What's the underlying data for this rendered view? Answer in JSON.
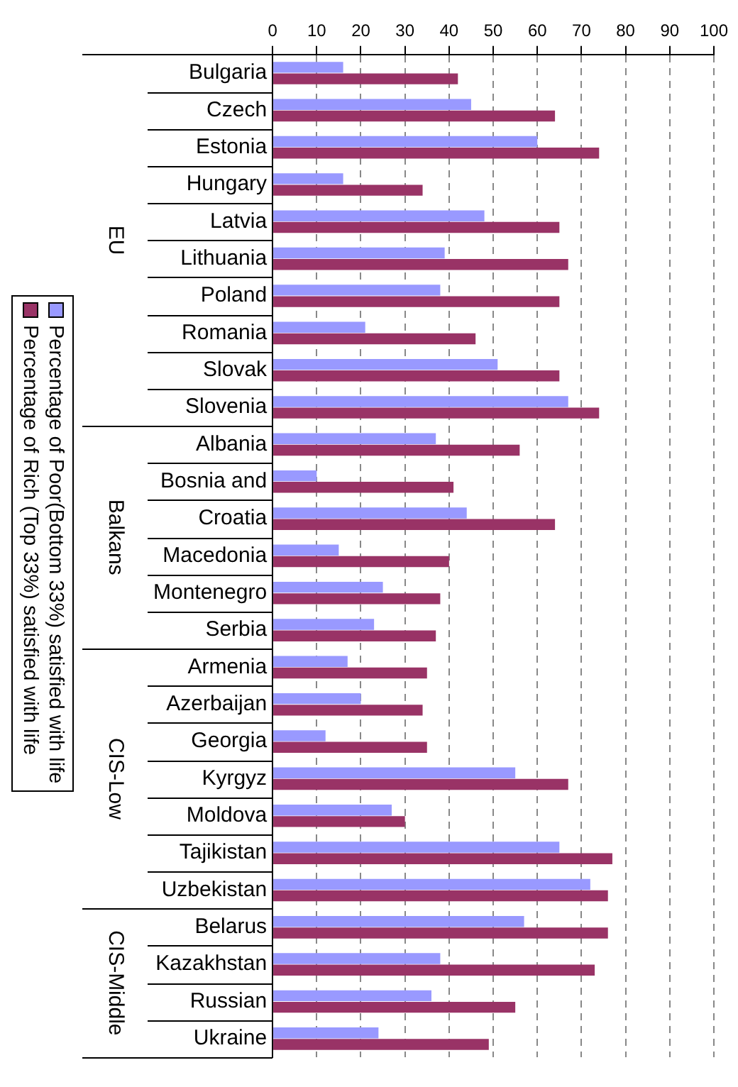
{
  "chart_data": {
    "type": "bar",
    "orientation": "horizontal",
    "categories": [
      "Bulgaria",
      "Czech",
      "Estonia",
      "Hungary",
      "Latvia",
      "Lithuania",
      "Poland",
      "Romania",
      "Slovak",
      "Slovenia",
      "Albania",
      "Bosnia and",
      "Croatia",
      "Macedonia",
      "Montenegro",
      "Serbia",
      "Armenia",
      "Azerbaijan",
      "Georgia",
      "Kyrgyz",
      "Moldova",
      "Tajikistan",
      "Uzbekistan",
      "Belarus",
      "Kazakhstan",
      "Russian",
      "Ukraine"
    ],
    "series": [
      {
        "name": "Percentage of Poor(Bottom 33%) satisfied with life",
        "color": "#9999ff",
        "values": [
          16,
          45,
          60,
          16,
          48,
          39,
          38,
          21,
          51,
          67,
          37,
          10,
          44,
          15,
          25,
          23,
          17,
          20,
          12,
          55,
          27,
          65,
          72,
          57,
          38,
          36,
          24
        ]
      },
      {
        "name": "Percentage of Rich (Top 33%) satisfied with life",
        "color": "#993366",
        "values": [
          42,
          64,
          74,
          34,
          65,
          67,
          65,
          46,
          65,
          74,
          56,
          41,
          64,
          40,
          38,
          37,
          35,
          34,
          35,
          67,
          30,
          77,
          76,
          76,
          73,
          55,
          49
        ]
      }
    ],
    "xlim": [
      0,
      100
    ],
    "xticks": [
      0,
      10,
      20,
      30,
      40,
      50,
      60,
      70,
      80,
      90,
      100
    ],
    "grid": "x",
    "legend": "left",
    "annotations": [
      "EU",
      "Balkans",
      "CIS-Low",
      "CIS-Middle"
    ]
  }
}
